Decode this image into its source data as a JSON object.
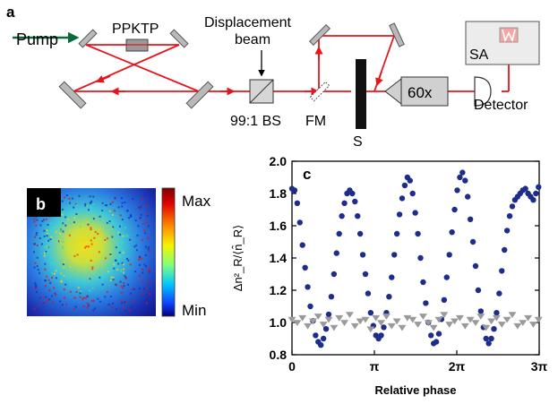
{
  "panel_a": {
    "label": "a",
    "pump": "Pump",
    "ppktp": "PPKTP",
    "displacement_line1": "Displacement",
    "displacement_line2": "beam",
    "bs": "99:1 BS",
    "fm": "FM",
    "s": "S",
    "objective": "60x",
    "sa": "SA",
    "detector": "Detector",
    "colors": {
      "beam": "#e8141c",
      "pump": "#0a6b3a",
      "optic": "#b9b9b9"
    }
  },
  "panel_b": {
    "label": "b",
    "colorbar_max": "Max",
    "colorbar_min": "Min"
  },
  "panel_c": {
    "label": "c",
    "ylabel": "Δn²_R/⟨n̂_R⟩",
    "xlabel": "Relative phase"
  },
  "chart_data": {
    "type": "scatter",
    "xlabel": "Relative phase",
    "ylabel": "Δn²_R/⟨n̂_R⟩",
    "xlim": [
      0,
      9.42478
    ],
    "ylim": [
      0.8,
      2.0
    ],
    "xticks": [
      {
        "value": 0,
        "label": "0"
      },
      {
        "value": 3.14159,
        "label": "π"
      },
      {
        "value": 6.28319,
        "label": "2π"
      },
      {
        "value": 9.42478,
        "label": "3π"
      }
    ],
    "yticks": [
      0.8,
      1.0,
      1.2,
      1.4,
      1.6,
      1.8,
      2.0
    ],
    "series": [
      {
        "color": "#1f2d8a",
        "marker": "circle",
        "x": [
          0.0,
          0.1,
          0.2,
          0.3,
          0.4,
          0.5,
          0.6,
          0.7,
          0.8,
          0.9,
          1.0,
          1.1,
          1.2,
          1.3,
          1.4,
          1.5,
          1.6,
          1.7,
          1.8,
          1.9,
          2.0,
          2.1,
          2.2,
          2.3,
          2.4,
          2.5,
          2.6,
          2.7,
          2.8,
          2.9,
          3.0,
          3.1,
          3.2,
          3.3,
          3.4,
          3.5,
          3.6,
          3.7,
          3.8,
          3.9,
          4.0,
          4.1,
          4.2,
          4.3,
          4.4,
          4.5,
          4.6,
          4.7,
          4.8,
          4.9,
          5.0,
          5.1,
          5.2,
          5.3,
          5.4,
          5.5,
          5.6,
          5.7,
          5.8,
          5.9,
          6.0,
          6.1,
          6.2,
          6.3,
          6.4,
          6.5,
          6.6,
          6.7,
          6.8,
          6.9,
          7.0,
          7.1,
          7.2,
          7.3,
          7.4,
          7.5,
          7.6,
          7.7,
          7.8,
          7.9,
          8.0,
          8.1,
          8.2,
          8.3,
          8.4,
          8.5,
          8.6,
          8.7,
          8.8,
          8.9,
          9.0,
          9.1,
          9.2,
          9.3,
          9.4
        ],
        "y": [
          1.83,
          1.82,
          1.74,
          1.62,
          1.48,
          1.34,
          1.22,
          1.1,
          1.01,
          0.92,
          0.88,
          0.86,
          0.9,
          0.96,
          1.05,
          1.16,
          1.3,
          1.43,
          1.55,
          1.66,
          1.74,
          1.8,
          1.82,
          1.8,
          1.75,
          1.66,
          1.55,
          1.42,
          1.3,
          1.18,
          1.06,
          0.98,
          0.92,
          0.9,
          0.92,
          0.97,
          1.06,
          1.16,
          1.28,
          1.42,
          1.55,
          1.67,
          1.77,
          1.85,
          1.9,
          1.88,
          1.8,
          1.68,
          1.55,
          1.4,
          1.25,
          1.12,
          1.0,
          0.92,
          0.87,
          0.88,
          0.93,
          1.02,
          1.14,
          1.28,
          1.42,
          1.56,
          1.7,
          1.82,
          1.9,
          1.93,
          1.88,
          1.78,
          1.64,
          1.5,
          1.35,
          1.2,
          1.07,
          0.97,
          0.9,
          0.87,
          0.9,
          0.96,
          1.06,
          1.18,
          1.32,
          1.45,
          1.57,
          1.66,
          1.72,
          1.76,
          1.78,
          1.8,
          1.82,
          1.83,
          1.8,
          1.78,
          1.76,
          1.8,
          1.84
        ]
      },
      {
        "color": "#9a9a9a",
        "marker": "triangle-down",
        "x": [
          0.0,
          0.2,
          0.4,
          0.6,
          0.8,
          1.0,
          1.2,
          1.4,
          1.6,
          1.8,
          2.0,
          2.2,
          2.4,
          2.6,
          2.8,
          3.0,
          3.2,
          3.4,
          3.6,
          3.8,
          4.0,
          4.2,
          4.4,
          4.6,
          4.8,
          5.0,
          5.2,
          5.4,
          5.6,
          5.8,
          6.0,
          6.2,
          6.4,
          6.6,
          6.8,
          7.0,
          7.2,
          7.4,
          7.6,
          7.8,
          8.0,
          8.2,
          8.4,
          8.6,
          8.8,
          9.0,
          9.2,
          9.4
        ],
        "y": [
          1.02,
          1.0,
          1.03,
          0.98,
          1.01,
          1.04,
          0.99,
          1.02,
          0.97,
          1.03,
          1.0,
          1.05,
          0.98,
          1.01,
          1.02,
          0.96,
          1.03,
          1.0,
          1.04,
          0.98,
          1.01,
          0.97,
          1.03,
          1.02,
          0.99,
          1.04,
          1.0,
          0.97,
          1.02,
          1.05,
          0.99,
          1.01,
          1.03,
          0.98,
          1.02,
          1.0,
          1.04,
          0.97,
          1.01,
          1.03,
          0.99,
          1.02,
          1.05,
          0.98,
          1.0,
          1.03,
          0.99,
          1.02
        ]
      }
    ]
  }
}
